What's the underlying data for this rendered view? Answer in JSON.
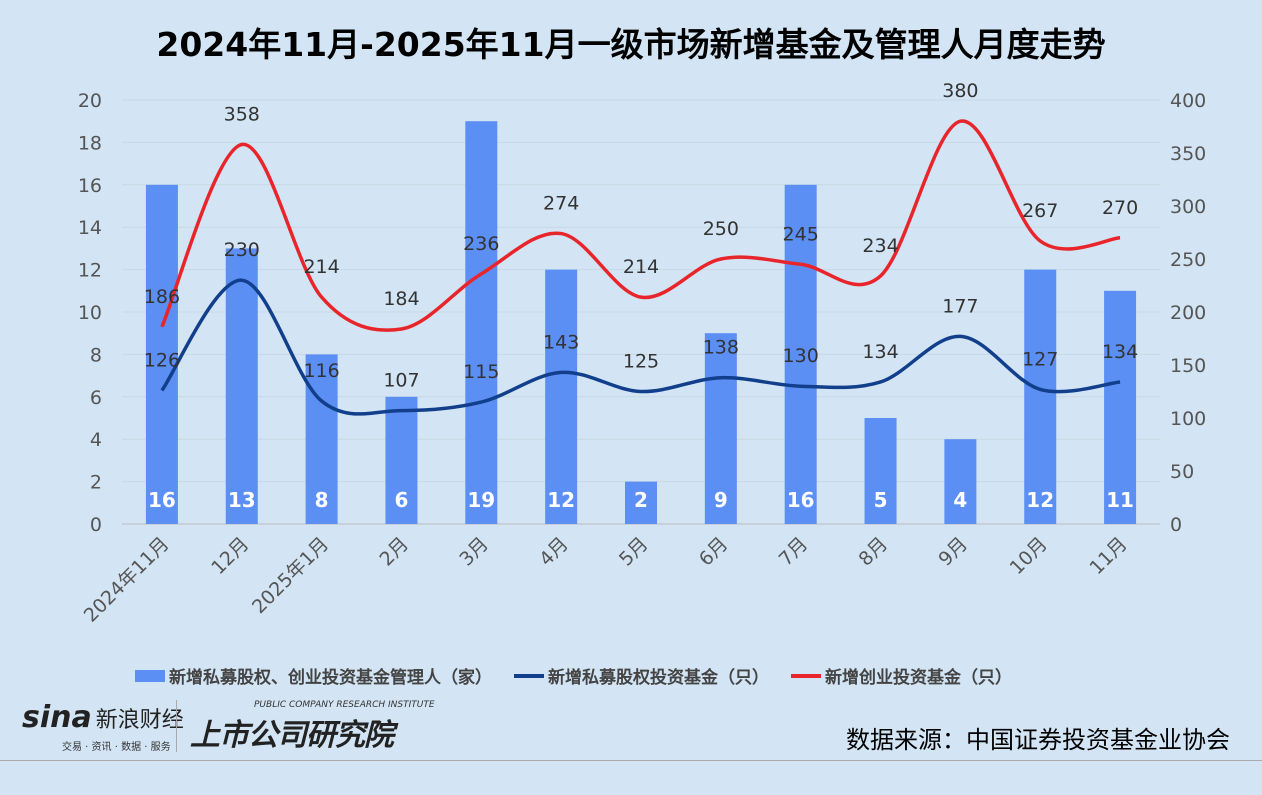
{
  "chart_data": {
    "type": "bar+line",
    "title": "2024年11月-2025年11月一级市场新增基金及管理人月度走势",
    "categories": [
      "2024年11月",
      "12月",
      "2025年1月",
      "2月",
      "3月",
      "4月",
      "5月",
      "6月",
      "7月",
      "8月",
      "9月",
      "10月",
      "11月"
    ],
    "left_axis": {
      "range": [
        0,
        20
      ],
      "ticks": [
        0,
        2,
        4,
        6,
        8,
        10,
        12,
        14,
        16,
        18,
        20
      ]
    },
    "right_axis": {
      "range": [
        0,
        400
      ],
      "ticks": [
        0,
        50,
        100,
        150,
        200,
        250,
        300,
        350,
        400
      ]
    },
    "grid": true,
    "legend_position": "bottom",
    "series": [
      {
        "name": "新增私募股权、创业投资基金管理人（家）",
        "type": "bar",
        "axis": "left",
        "color": "#5b8ff3",
        "values": [
          16,
          13,
          8,
          6,
          19,
          12,
          2,
          9,
          16,
          5,
          4,
          12,
          11
        ]
      },
      {
        "name": "新增私募股权投资基金（只）",
        "type": "line",
        "axis": "right",
        "color": "#123f8c",
        "values": [
          126,
          230,
          116,
          107,
          115,
          143,
          125,
          138,
          130,
          134,
          177,
          127,
          134
        ]
      },
      {
        "name": "新增创业投资基金（只）",
        "type": "line",
        "axis": "right",
        "color": "#e8252b",
        "values": [
          186,
          358,
          214,
          184,
          236,
          274,
          214,
          250,
          245,
          234,
          380,
          267,
          270
        ]
      }
    ]
  },
  "footer": {
    "sina_logo": "sina",
    "sina_cn": "新浪财经",
    "sina_sub": "交易 · 资讯 · 数据 · 服务",
    "institute_en": "PUBLIC COMPANY RESEARCH INSTITUTE",
    "institute_cn": "上市公司研究院",
    "source": "数据来源：中国证券投资基金业协会"
  }
}
